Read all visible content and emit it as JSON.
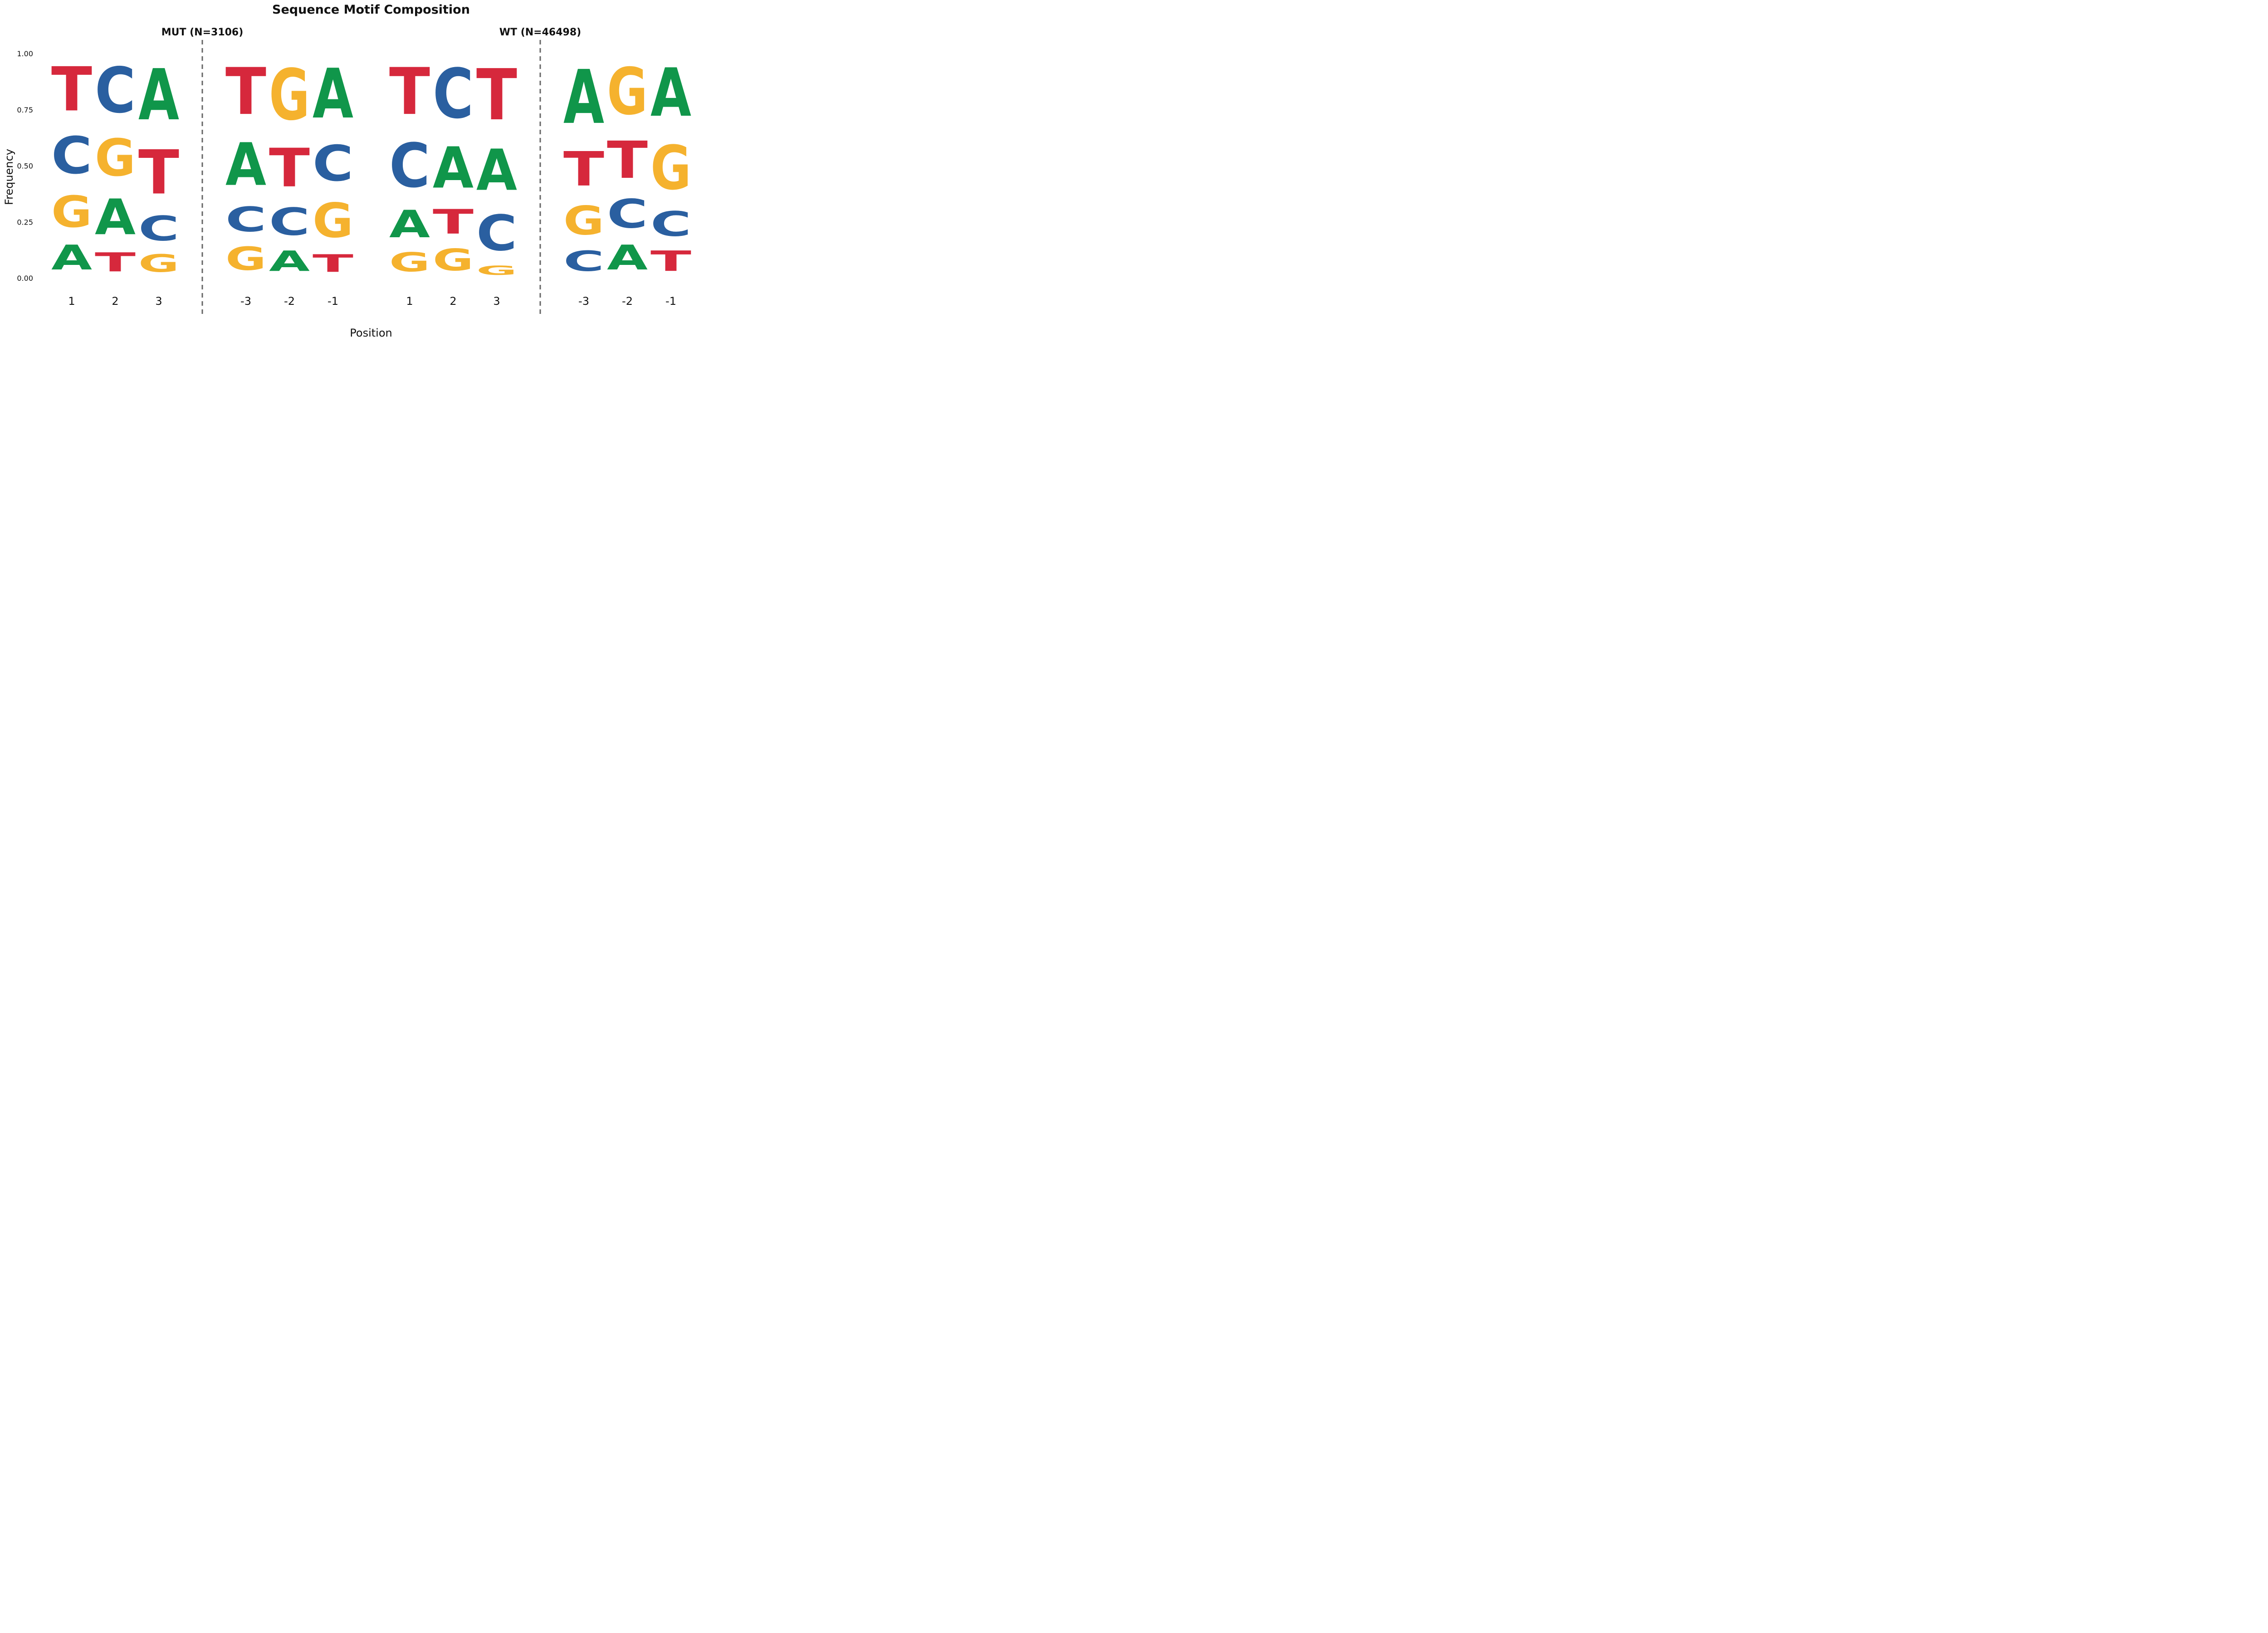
{
  "chart_data": {
    "type": "sequence-logo",
    "title": "Sequence Motif Composition",
    "xlabel": "Position",
    "ylabel": "Frequency",
    "ylim": [
      0,
      1
    ],
    "yticks": [
      "0.00",
      "0.25",
      "0.50",
      "0.75",
      "1.00"
    ],
    "colors": {
      "A": "#10964a",
      "C": "#2a5fa0",
      "G": "#f5b22e",
      "T": "#d6283c"
    },
    "panels": [
      {
        "label": "MUT (N=3106)",
        "groups": [
          {
            "positions": [
              {
                "label": "1",
                "stack": [
                  [
                    "A",
                    0.18
                  ],
                  [
                    "G",
                    0.23
                  ],
                  [
                    "C",
                    0.27
                  ],
                  [
                    "T",
                    0.32
                  ]
                ]
              },
              {
                "label": "2",
                "stack": [
                  [
                    "T",
                    0.14
                  ],
                  [
                    "A",
                    0.26
                  ],
                  [
                    "G",
                    0.27
                  ],
                  [
                    "C",
                    0.33
                  ]
                ]
              },
              {
                "label": "3",
                "stack": [
                  [
                    "G",
                    0.13
                  ],
                  [
                    "C",
                    0.18
                  ],
                  [
                    "T",
                    0.32
                  ],
                  [
                    "A",
                    0.37
                  ]
                ]
              }
            ]
          },
          {
            "positions": [
              {
                "label": "-3",
                "stack": [
                  [
                    "G",
                    0.17
                  ],
                  [
                    "C",
                    0.18
                  ],
                  [
                    "A",
                    0.31
                  ],
                  [
                    "T",
                    0.34
                  ]
                ]
              },
              {
                "label": "-2",
                "stack": [
                  [
                    "A",
                    0.15
                  ],
                  [
                    "C",
                    0.2
                  ],
                  [
                    "T",
                    0.28
                  ],
                  [
                    "G",
                    0.37
                  ]
                ]
              },
              {
                "label": "-1",
                "stack": [
                  [
                    "T",
                    0.13
                  ],
                  [
                    "G",
                    0.25
                  ],
                  [
                    "C",
                    0.26
                  ],
                  [
                    "A",
                    0.36
                  ]
                ]
              }
            ]
          }
        ]
      },
      {
        "label": "WT (N=46498)",
        "groups": [
          {
            "positions": [
              {
                "label": "1",
                "stack": [
                  [
                    "G",
                    0.14
                  ],
                  [
                    "A",
                    0.2
                  ],
                  [
                    "C",
                    0.32
                  ],
                  [
                    "T",
                    0.34
                  ]
                ]
              },
              {
                "label": "2",
                "stack": [
                  [
                    "G",
                    0.16
                  ],
                  [
                    "T",
                    0.18
                  ],
                  [
                    "A",
                    0.3
                  ],
                  [
                    "C",
                    0.36
                  ]
                ]
              },
              {
                "label": "3",
                "stack": [
                  [
                    "G",
                    0.07
                  ],
                  [
                    "C",
                    0.26
                  ],
                  [
                    "A",
                    0.3
                  ],
                  [
                    "T",
                    0.37
                  ]
                ]
              }
            ]
          },
          {
            "positions": [
              {
                "label": "-3",
                "stack": [
                  [
                    "C",
                    0.15
                  ],
                  [
                    "G",
                    0.21
                  ],
                  [
                    "T",
                    0.25
                  ],
                  [
                    "A",
                    0.39
                  ]
                ]
              },
              {
                "label": "-2",
                "stack": [
                  [
                    "A",
                    0.18
                  ],
                  [
                    "C",
                    0.21
                  ],
                  [
                    "T",
                    0.27
                  ],
                  [
                    "G",
                    0.34
                  ]
                ]
              },
              {
                "label": "-1",
                "stack": [
                  [
                    "T",
                    0.15
                  ],
                  [
                    "C",
                    0.18
                  ],
                  [
                    "G",
                    0.32
                  ],
                  [
                    "A",
                    0.35
                  ]
                ]
              }
            ]
          }
        ]
      }
    ]
  }
}
